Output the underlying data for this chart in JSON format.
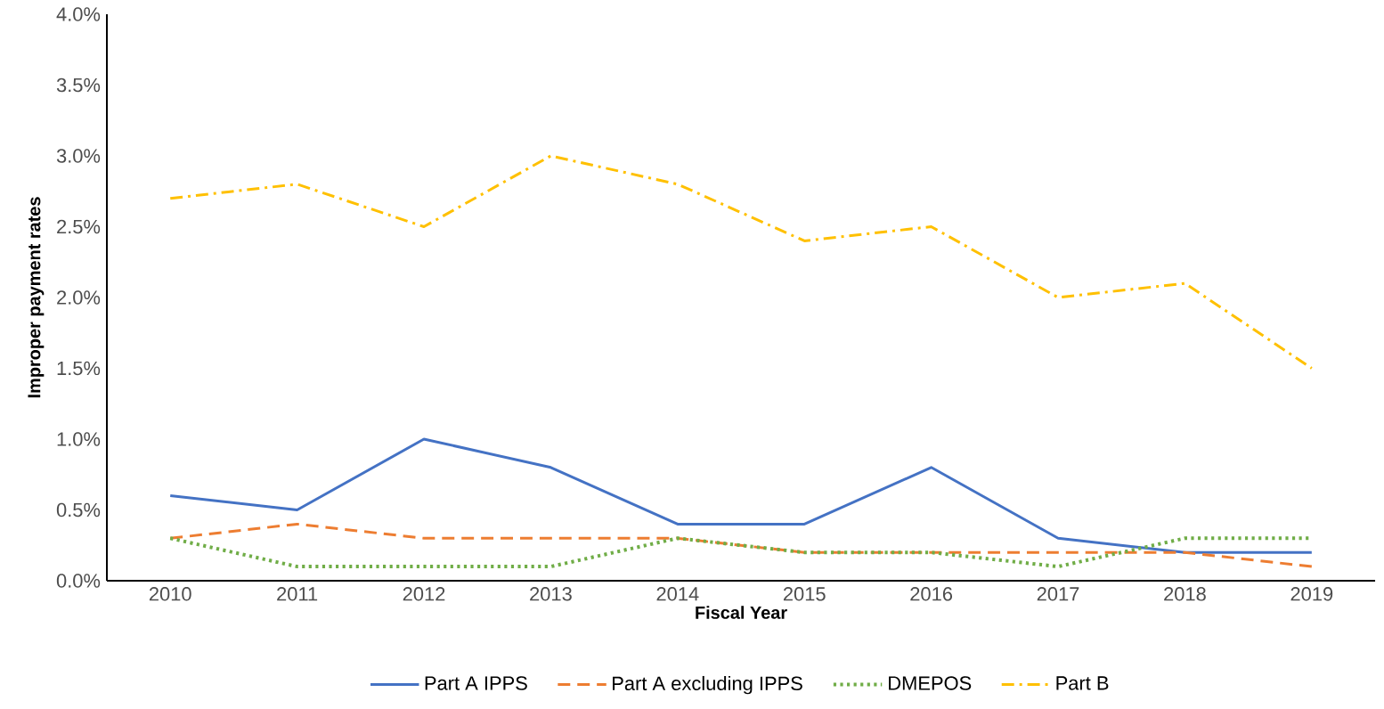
{
  "chart_data": {
    "type": "line",
    "xlabel": "Fiscal Year",
    "ylabel": "Improper payment rates",
    "categories": [
      "2010",
      "2011",
      "2012",
      "2013",
      "2014",
      "2015",
      "2016",
      "2017",
      "2018",
      "2019"
    ],
    "ylim": [
      0,
      4
    ],
    "yticks": [
      {
        "value": 0,
        "label": "0.0%"
      },
      {
        "value": 0.5,
        "label": "0.5%"
      },
      {
        "value": 1,
        "label": "1.0%"
      },
      {
        "value": 1.5,
        "label": "1.5%"
      },
      {
        "value": 2,
        "label": "2.0%"
      },
      {
        "value": 2.5,
        "label": "2.5%"
      },
      {
        "value": 3,
        "label": "3.0%"
      },
      {
        "value": 3.5,
        "label": "3.5%"
      },
      {
        "value": 4,
        "label": "4.0%"
      }
    ],
    "grid": false,
    "legend": "bottom",
    "series": [
      {
        "name": "Part A IPPS",
        "color": "#4472c4",
        "line_style": "solid",
        "values": [
          0.6,
          0.5,
          1.0,
          0.8,
          0.4,
          0.4,
          0.8,
          0.3,
          0.2,
          0.2
        ]
      },
      {
        "name": "Part A excluding IPPS",
        "color": "#ed7d31",
        "line_style": "dashed",
        "values": [
          0.3,
          0.4,
          0.3,
          0.3,
          0.3,
          0.2,
          0.2,
          0.2,
          0.2,
          0.1
        ]
      },
      {
        "name": "DMEPOS",
        "color": "#70ad47",
        "line_style": "dotted",
        "values": [
          0.3,
          0.1,
          0.1,
          0.1,
          0.3,
          0.2,
          0.2,
          0.1,
          0.3,
          0.3
        ]
      },
      {
        "name": "Part B",
        "color": "#ffc000",
        "line_style": "dashdot",
        "values": [
          2.7,
          2.8,
          2.5,
          3.0,
          2.8,
          2.4,
          2.5,
          2.0,
          2.1,
          1.5
        ]
      }
    ]
  }
}
